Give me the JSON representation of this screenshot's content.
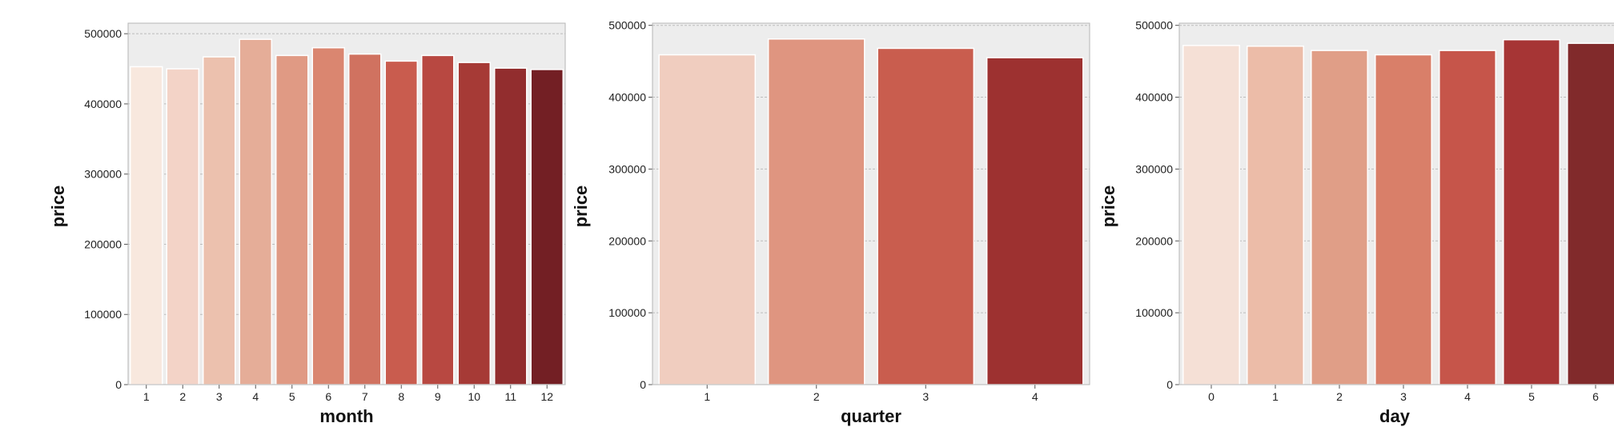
{
  "chart_data": [
    {
      "type": "bar",
      "categories": [
        "1",
        "2",
        "3",
        "4",
        "5",
        "6",
        "7",
        "8",
        "9",
        "10",
        "11",
        "12"
      ],
      "values": [
        453000,
        450000,
        467000,
        492000,
        469000,
        480000,
        471000,
        461000,
        469000,
        459000,
        451000,
        449000
      ],
      "xlabel": "month",
      "ylabel": "price",
      "ylim": [
        0,
        515000
      ],
      "yticks": [
        "0",
        "100000",
        "200000",
        "300000",
        "400000",
        "500000"
      ],
      "grid": true,
      "colors": [
        "#f8e8de",
        "#f3d3c7",
        "#ecc1ae",
        "#e5ad98",
        "#e09a84",
        "#da8670",
        "#d07260",
        "#c95c4e",
        "#b84841",
        "#a63a36",
        "#922d2e",
        "#731f24"
      ]
    },
    {
      "type": "bar",
      "categories": [
        "1",
        "2",
        "3",
        "4"
      ],
      "values": [
        459000,
        481000,
        468000,
        455000
      ],
      "xlabel": "quarter",
      "ylabel": "price",
      "ylim": [
        0,
        503000
      ],
      "yticks": [
        "0",
        "100000",
        "200000",
        "300000",
        "400000",
        "500000"
      ],
      "grid": true,
      "colors": [
        "#f0cdbf",
        "#df9580",
        "#c95d4e",
        "#9d3130"
      ]
    },
    {
      "type": "bar",
      "categories": [
        "0",
        "1",
        "2",
        "3",
        "4",
        "5",
        "6"
      ],
      "values": [
        472000,
        471000,
        465000,
        459000,
        465000,
        480000,
        475000
      ],
      "xlabel": "day",
      "ylabel": "price",
      "ylim": [
        0,
        503000
      ],
      "yticks": [
        "0",
        "100000",
        "200000",
        "300000",
        "400000",
        "500000"
      ],
      "grid": true,
      "colors": [
        "#f5e0d6",
        "#ecbca8",
        "#e09e87",
        "#d97f69",
        "#c6554a",
        "#a63535",
        "#812a2b"
      ]
    }
  ]
}
